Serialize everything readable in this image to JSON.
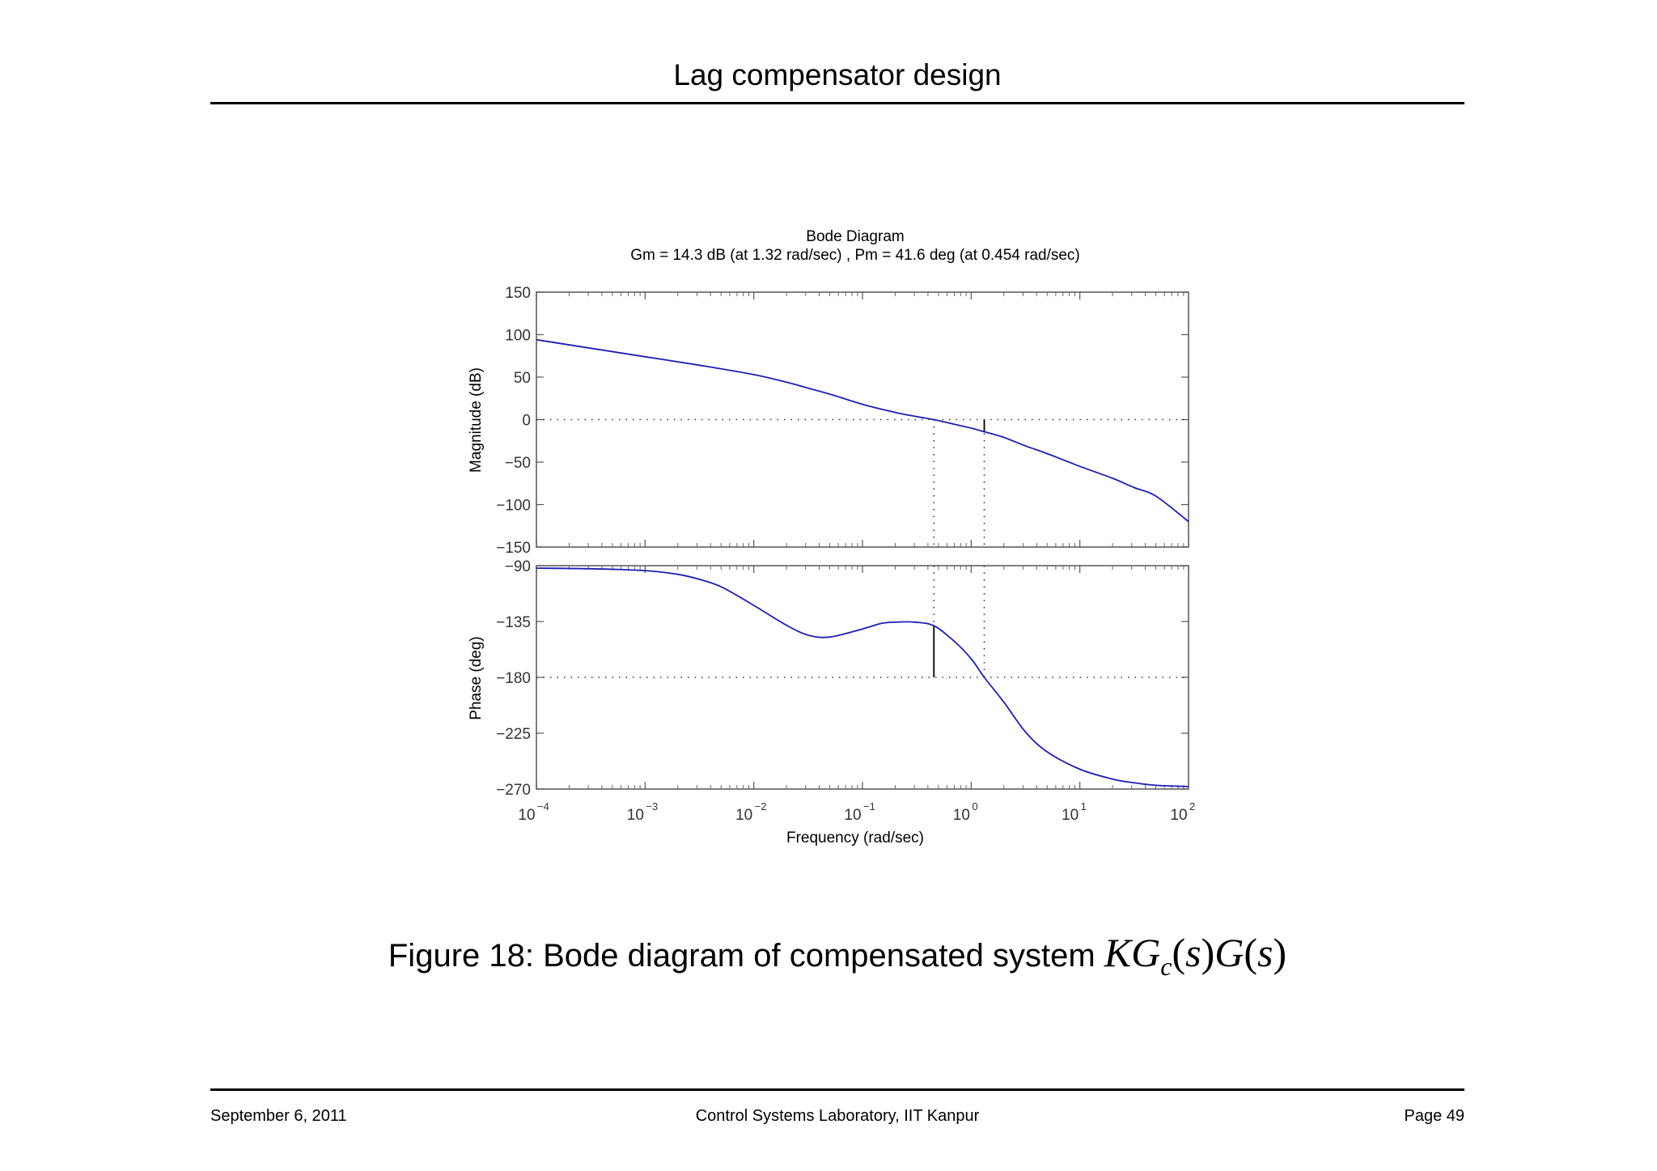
{
  "slide": {
    "title": "Lag compensator design",
    "footer_left": "September 6, 2011",
    "footer_center": "Control Systems Laboratory, IIT Kanpur",
    "footer_right": "Page 49"
  },
  "figure": {
    "caption_text": "Figure 18: Bode diagram of compensated system ",
    "caption_math": {
      "K": "K",
      "G": "G",
      "sub": "c",
      "s": "s"
    }
  },
  "colors": {
    "curve": "#1f1fb4",
    "axes": "#555555",
    "markers": "#000000"
  },
  "chart_data": {
    "type": "line",
    "title": "Bode Diagram",
    "subtitle": "Gm = 14.3 dB (at 1.32 rad/sec) ,  Pm = 41.6 deg (at 0.454 rad/sec)",
    "xlabel": "Frequency  (rad/sec)",
    "xscale": "log",
    "xlim": [
      0.0001,
      100
    ],
    "x_ticks": [
      {
        "value": 0.0001,
        "base": "10",
        "exp": "−4"
      },
      {
        "value": 0.001,
        "base": "10",
        "exp": "−3"
      },
      {
        "value": 0.01,
        "base": "10",
        "exp": "−2"
      },
      {
        "value": 0.1,
        "base": "10",
        "exp": "−1"
      },
      {
        "value": 1,
        "base": "10",
        "exp": "0"
      },
      {
        "value": 10,
        "base": "10",
        "exp": "1"
      },
      {
        "value": 100,
        "base": "10",
        "exp": "2"
      }
    ],
    "margins": {
      "gain_margin_db": 14.3,
      "gain_crossover_freq": 1.32,
      "phase_margin_deg": 41.6,
      "phase_crossover_freq": 0.454
    },
    "magnitude": {
      "ylabel": "Magnitude (dB)",
      "ylim": [
        -150,
        150
      ],
      "y_ticks": [
        {
          "value": 150,
          "label": "150"
        },
        {
          "value": 100,
          "label": "100"
        },
        {
          "value": 50,
          "label": "50"
        },
        {
          "value": 0,
          "label": "0"
        },
        {
          "value": -50,
          "label": "−50"
        },
        {
          "value": -100,
          "label": "−100"
        },
        {
          "value": -150,
          "label": "−150"
        }
      ],
      "series": [
        {
          "x": [
            0.0001,
            0.000316,
            0.001,
            0.00316,
            0.01,
            0.02,
            0.0316,
            0.05,
            0.1,
            0.2,
            0.3,
            0.454,
            0.7,
            1,
            1.32,
            2,
            3.16,
            5,
            10,
            20,
            31.6,
            50,
            100
          ],
          "y": [
            94,
            84,
            74,
            64,
            53,
            44,
            37,
            30,
            18,
            8.5,
            4,
            0,
            -5.5,
            -10,
            -14.3,
            -21,
            -31,
            -40,
            -55,
            -69,
            -80,
            -90,
            -120
          ]
        }
      ]
    },
    "phase": {
      "ylabel": "Phase (deg)",
      "ylim": [
        -270,
        -90
      ],
      "y_ticks": [
        {
          "value": -90,
          "label": "−90"
        },
        {
          "value": -135,
          "label": "−135"
        },
        {
          "value": -180,
          "label": "−180"
        },
        {
          "value": -225,
          "label": "−225"
        },
        {
          "value": -270,
          "label": "−270"
        }
      ],
      "series": [
        {
          "x": [
            0.0001,
            0.000316,
            0.001,
            0.002,
            0.00316,
            0.005,
            0.01,
            0.02,
            0.0316,
            0.05,
            0.1,
            0.15,
            0.2,
            0.3,
            0.454,
            0.7,
            1,
            1.32,
            2,
            3.16,
            5,
            10,
            20,
            31.6,
            50,
            100
          ],
          "y": [
            -92,
            -92.5,
            -94,
            -97,
            -101,
            -107,
            -122,
            -138,
            -146,
            -147.5,
            -141,
            -136.5,
            -135.5,
            -135.5,
            -138.4,
            -151,
            -165,
            -180,
            -200,
            -224,
            -240,
            -254,
            -262,
            -265,
            -267,
            -268
          ]
        }
      ]
    }
  }
}
